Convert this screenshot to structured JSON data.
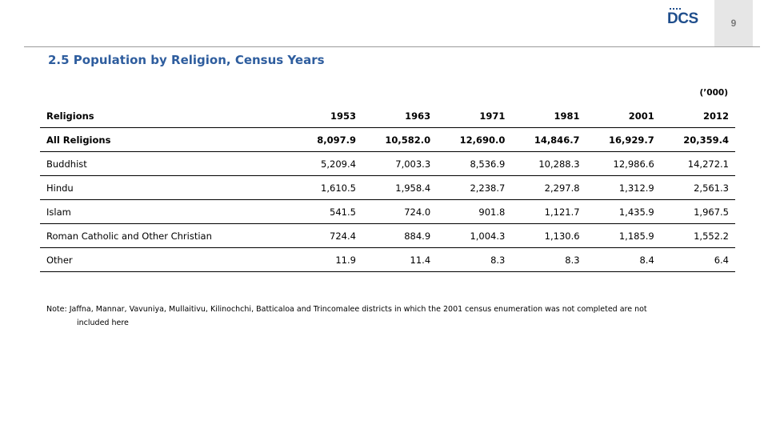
{
  "header": {
    "page_number": "9",
    "logo_text": "DCS"
  },
  "title": "2.5 Population by Religion, Census Years",
  "units": "(’000)",
  "table": {
    "columns": [
      "Religions",
      "1953",
      "1963",
      "1971",
      "1981",
      "2001",
      "2012"
    ],
    "rows": [
      {
        "label": "All Religions",
        "values": [
          "8,097.9",
          "10,582.0",
          "12,690.0",
          "14,846.7",
          "16,929.7",
          "20,359.4"
        ]
      },
      {
        "label": "Buddhist",
        "values": [
          "5,209.4",
          "7,003.3",
          "8,536.9",
          "10,288.3",
          "12,986.6",
          "14,272.1"
        ]
      },
      {
        "label": "Hindu",
        "values": [
          "1,610.5",
          "1,958.4",
          "2,238.7",
          "2,297.8",
          "1,312.9",
          "2,561.3"
        ]
      },
      {
        "label": "Islam",
        "values": [
          "541.5",
          "724.0",
          "901.8",
          "1,121.7",
          "1,435.9",
          "1,967.5"
        ]
      },
      {
        "label": "Roman Catholic and Other Christian",
        "values": [
          "724.4",
          "884.9",
          "1,004.3",
          "1,130.6",
          "1,185.9",
          "1,552.2"
        ]
      },
      {
        "label": "Other",
        "values": [
          "11.9",
          "11.4",
          "8.3",
          "8.3",
          "8.4",
          "6.4"
        ]
      }
    ]
  },
  "note": {
    "line1": "Note: Jaffna, Mannar, Vavuniya, Mullaitivu, Kilinochchi, Batticaloa and Trincomalee districts in which the  2001 census enumeration  was not completed are not",
    "line2": "included here"
  }
}
